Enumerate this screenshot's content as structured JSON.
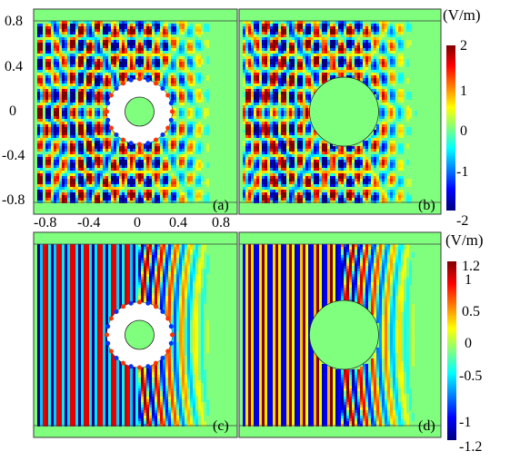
{
  "figure": {
    "panels": [
      {
        "label": "(a)",
        "field": "total-with-cloak",
        "cloak": true,
        "pattern": "interference"
      },
      {
        "label": "(b)",
        "field": "scattered-only",
        "cloak": false,
        "pattern": "interference"
      },
      {
        "label": "(c)",
        "field": "total-with-cloak",
        "cloak": true,
        "pattern": "plane"
      },
      {
        "label": "(d)",
        "field": "scattered-only",
        "cloak": false,
        "pattern": "plane"
      }
    ]
  },
  "chart_data": [
    {
      "type": "heatmap",
      "title": "",
      "xlabel": "",
      "ylabel": "",
      "x_ticks": [
        "-0.8",
        "-0.4",
        "0",
        "0.4",
        "0.8"
      ],
      "y_ticks": [
        "0.8",
        "0.4",
        "0",
        "-0.4",
        "-0.8"
      ],
      "xlim": [
        -1,
        1
      ],
      "ylim": [
        -1,
        1
      ],
      "colorbar": {
        "unit": "(V/m)",
        "range": [
          -2,
          2
        ],
        "ticks": [
          "2",
          "1",
          "0",
          "-1",
          "-2"
        ],
        "colormap": "jet"
      },
      "panels": [
        "(a)",
        "(b)"
      ]
    },
    {
      "type": "heatmap",
      "title": "",
      "xlabel": "",
      "ylabel": "",
      "xlim": [
        -1,
        1
      ],
      "ylim": [
        -1,
        1
      ],
      "colorbar": {
        "unit": "(V/m)",
        "range": [
          -1.2,
          1.2
        ],
        "ticks": [
          "1.2",
          "1",
          "0.5",
          "0",
          "-0.5",
          "-1",
          "-1.2"
        ],
        "colormap": "jet"
      },
      "panels": [
        "(c)",
        "(d)"
      ]
    }
  ],
  "colors": {
    "background_field": "#80ff7f",
    "pml_band": "#86f280",
    "cloak_fill": "#ffffff",
    "frame": "#3a3a3a"
  }
}
